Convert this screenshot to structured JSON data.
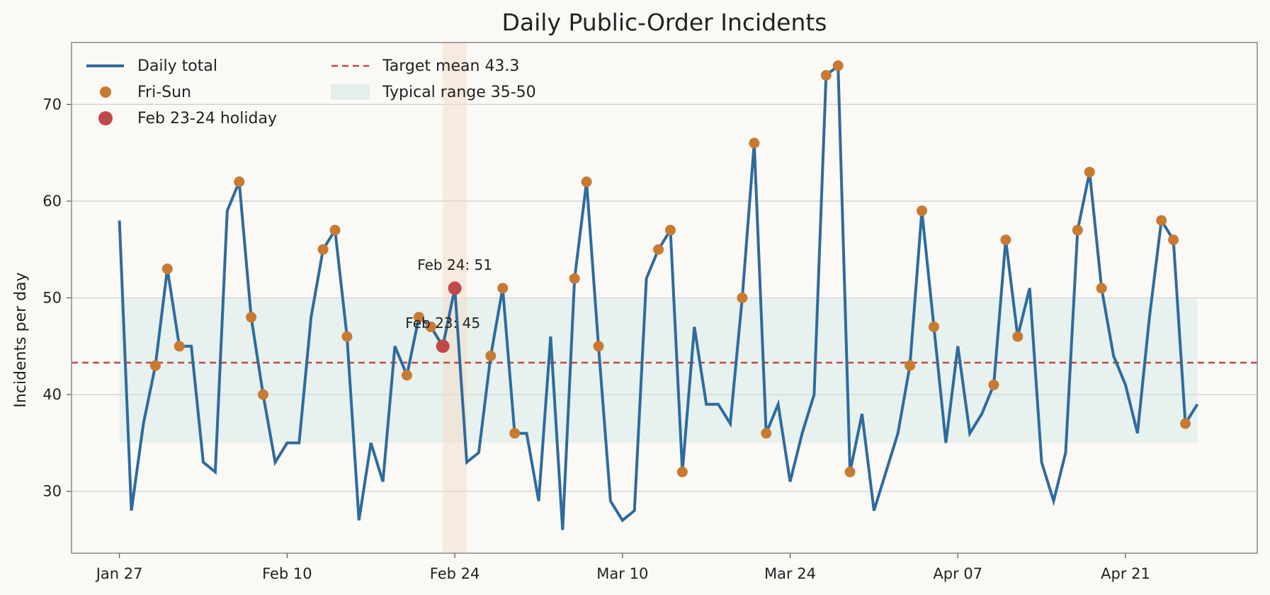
{
  "chart_data": {
    "type": "line",
    "title": "Daily Public-Order Incidents",
    "xlabel": "",
    "ylabel": "Incidents per day",
    "x_range": [
      "2025-01-23",
      "2025-05-02"
    ],
    "ylim": [
      23.6,
      76.4
    ],
    "x_ticks": [
      {
        "date": "2025-01-27",
        "label": "Jan 27"
      },
      {
        "date": "2025-02-10",
        "label": "Feb 10"
      },
      {
        "date": "2025-02-24",
        "label": "Feb 24"
      },
      {
        "date": "2025-03-10",
        "label": "Mar 10"
      },
      {
        "date": "2025-03-24",
        "label": "Mar 24"
      },
      {
        "date": "2025-04-07",
        "label": "Apr 07"
      },
      {
        "date": "2025-04-21",
        "label": "Apr 21"
      }
    ],
    "y_ticks": [
      30,
      40,
      50,
      60,
      70
    ],
    "grid": "horizontal",
    "start_date": "2025-01-27",
    "series": [
      {
        "name": "Daily total",
        "color": "#2e6b9e",
        "values": [
          58,
          28,
          37,
          43,
          53,
          45,
          45,
          33,
          32,
          59,
          62,
          48,
          40,
          33,
          35,
          35,
          48,
          55,
          57,
          46,
          27,
          35,
          31,
          45,
          42,
          48,
          47,
          45,
          51,
          33,
          34,
          44,
          51,
          36,
          36,
          29,
          46,
          26,
          52,
          62,
          45,
          29,
          27,
          28,
          52,
          55,
          57,
          32,
          47,
          39,
          39,
          37,
          50,
          66,
          36,
          39,
          31,
          36,
          40,
          73,
          74,
          32,
          38,
          28,
          32,
          36,
          43,
          59,
          47,
          35,
          45,
          36,
          38,
          41,
          56,
          46,
          51,
          33,
          29,
          34,
          57,
          63,
          51,
          44,
          41,
          36,
          48,
          58,
          56,
          37,
          39
        ]
      }
    ],
    "weekend_markers": {
      "name": "Fri-Sun",
      "color": "#c87a32",
      "dates": [
        "2025-01-30",
        "2025-01-31",
        "2025-02-01",
        "2025-02-06",
        "2025-02-07",
        "2025-02-08",
        "2025-02-13",
        "2025-02-14",
        "2025-02-15",
        "2025-02-20",
        "2025-02-21",
        "2025-02-22",
        "2025-02-27",
        "2025-02-28",
        "2025-03-01",
        "2025-03-06",
        "2025-03-07",
        "2025-03-08",
        "2025-03-13",
        "2025-03-14",
        "2025-03-15",
        "2025-03-20",
        "2025-03-21",
        "2025-03-22",
        "2025-03-27",
        "2025-03-28",
        "2025-03-29",
        "2025-04-03",
        "2025-04-04",
        "2025-04-05",
        "2025-04-10",
        "2025-04-11",
        "2025-04-12",
        "2025-04-17",
        "2025-04-18",
        "2025-04-19",
        "2025-04-24",
        "2025-04-25",
        "2025-04-26"
      ]
    },
    "holiday_markers": {
      "name": "Feb 23-24 holiday",
      "color": "#c0494a",
      "points": [
        {
          "date": "2025-02-23",
          "value": 45,
          "label": "Feb 23: 45"
        },
        {
          "date": "2025-02-24",
          "value": 51,
          "label": "Feb 24: 51"
        }
      ],
      "shade_range": [
        "2025-02-23",
        "2025-02-25"
      ],
      "shade_color": "#f3dcc6"
    },
    "target_line": {
      "name": "Target mean 43.3",
      "value": 43.3,
      "color": "#c0494a"
    },
    "typical_range": {
      "name": "Typical range 35-50",
      "low": 35,
      "high": 50,
      "color": "#cfe6e3",
      "from": "2025-01-27",
      "to": "2025-04-27"
    },
    "legend_position": "top-left",
    "legend_columns": 2
  }
}
